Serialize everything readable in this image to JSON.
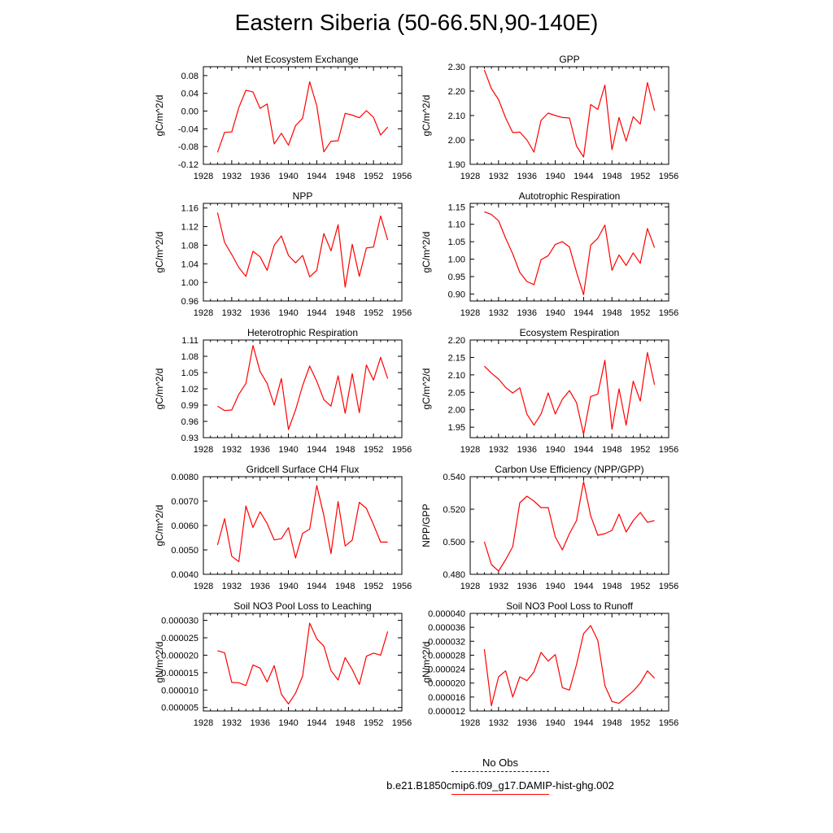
{
  "title": "Eastern Siberia (50-66.5N,90-140E)",
  "colors": {
    "model": "#ff0000",
    "obs": "#0000ff",
    "axis": "#000000"
  },
  "legend": {
    "obs_label": "No Obs",
    "model_label": "b.e21.B1850cmip6.f09_g17.DAMIP-hist-ghg.002"
  },
  "chart_data": [
    {
      "type": "line",
      "title": "Net Ecosystem Exchange",
      "ylabel": "gC/m^2/d",
      "xlim": [
        1928,
        1956
      ],
      "xticks": [
        1928,
        1932,
        1936,
        1940,
        1944,
        1948,
        1952,
        1956
      ],
      "ylim": [
        -0.12,
        0.1
      ],
      "yticks": [
        "-0.12",
        "-0.08",
        "-0.04",
        "0.00",
        "0.04",
        "0.08"
      ],
      "series": [
        {
          "x": [
            1930,
            1931,
            1932,
            1933,
            1934,
            1935,
            1936,
            1937,
            1938,
            1939,
            1940,
            1941,
            1942,
            1943,
            1944,
            1945,
            1946,
            1947,
            1948,
            1949,
            1950,
            1951,
            1952,
            1953,
            1954
          ],
          "values": [
            -0.093,
            -0.048,
            -0.047,
            0.008,
            0.047,
            0.043,
            0.006,
            0.016,
            -0.074,
            -0.05,
            -0.077,
            -0.033,
            -0.016,
            0.066,
            0.012,
            -0.092,
            -0.068,
            -0.067,
            -0.005,
            -0.009,
            -0.015,
            0.001,
            -0.014,
            -0.054,
            -0.036
          ]
        }
      ]
    },
    {
      "type": "line",
      "title": "GPP",
      "ylabel": "gC/m^2/d",
      "xlim": [
        1928,
        1956
      ],
      "xticks": [
        1928,
        1932,
        1936,
        1940,
        1944,
        1948,
        1952,
        1956
      ],
      "ylim": [
        1.9,
        2.3
      ],
      "yticks": [
        "1.90",
        "2.00",
        "2.10",
        "2.20",
        "2.30"
      ],
      "series": [
        {
          "x": [
            1930,
            1931,
            1932,
            1933,
            1934,
            1935,
            1936,
            1937,
            1938,
            1939,
            1940,
            1941,
            1942,
            1943,
            1944,
            1945,
            1946,
            1947,
            1948,
            1949,
            1950,
            1951,
            1952,
            1953,
            1954
          ],
          "values": [
            2.287,
            2.21,
            2.165,
            2.09,
            2.03,
            2.032,
            2.0,
            1.95,
            2.08,
            2.11,
            2.1,
            2.092,
            2.09,
            1.975,
            1.93,
            2.145,
            2.125,
            2.225,
            1.96,
            2.092,
            1.995,
            2.095,
            2.065,
            2.235,
            2.12
          ]
        }
      ]
    },
    {
      "type": "line",
      "title": "NPP",
      "ylabel": "gC/m^2/d",
      "xlim": [
        1928,
        1956
      ],
      "xticks": [
        1928,
        1932,
        1936,
        1940,
        1944,
        1948,
        1952,
        1956
      ],
      "ylim": [
        0.96,
        1.17
      ],
      "yticks": [
        "0.96",
        "1.00",
        "1.04",
        "1.08",
        "1.12",
        "1.16"
      ],
      "series": [
        {
          "x": [
            1930,
            1931,
            1932,
            1933,
            1934,
            1935,
            1936,
            1937,
            1938,
            1939,
            1940,
            1941,
            1942,
            1943,
            1944,
            1945,
            1946,
            1947,
            1948,
            1949,
            1950,
            1951,
            1952,
            1953,
            1954
          ],
          "values": [
            1.15,
            1.086,
            1.06,
            1.032,
            1.013,
            1.067,
            1.055,
            1.026,
            1.08,
            1.1,
            1.058,
            1.042,
            1.058,
            1.012,
            1.026,
            1.105,
            1.068,
            1.124,
            0.99,
            1.082,
            1.013,
            1.074,
            1.076,
            1.143,
            1.091
          ]
        }
      ]
    },
    {
      "type": "line",
      "title": "Autotrophic Respiration",
      "ylabel": "gC/m^2/d",
      "xlim": [
        1928,
        1956
      ],
      "xticks": [
        1928,
        1932,
        1936,
        1940,
        1944,
        1948,
        1952,
        1956
      ],
      "ylim": [
        0.88,
        1.16
      ],
      "yticks": [
        "0.90",
        "0.95",
        "1.00",
        "1.05",
        "1.10",
        "1.15"
      ],
      "series": [
        {
          "x": [
            1930,
            1931,
            1932,
            1933,
            1934,
            1935,
            1936,
            1937,
            1938,
            1939,
            1940,
            1941,
            1942,
            1943,
            1944,
            1945,
            1946,
            1947,
            1948,
            1949,
            1950,
            1951,
            1952,
            1953,
            1954
          ],
          "values": [
            1.136,
            1.128,
            1.11,
            1.06,
            1.015,
            0.962,
            0.936,
            0.927,
            0.998,
            1.01,
            1.042,
            1.05,
            1.035,
            0.963,
            0.898,
            1.04,
            1.06,
            1.098,
            0.968,
            1.012,
            0.982,
            1.018,
            0.988,
            1.088,
            1.033
          ]
        }
      ]
    },
    {
      "type": "line",
      "title": "Heterotrophic Respiration",
      "ylabel": "gC/m^2/d",
      "xlim": [
        1928,
        1956
      ],
      "xticks": [
        1928,
        1932,
        1936,
        1940,
        1944,
        1948,
        1952,
        1956
      ],
      "ylim": [
        0.93,
        1.11
      ],
      "yticks": [
        "0.93",
        "0.96",
        "0.99",
        "1.02",
        "1.05",
        "1.08",
        "1.11"
      ],
      "series": [
        {
          "x": [
            1930,
            1931,
            1932,
            1933,
            1934,
            1935,
            1936,
            1937,
            1938,
            1939,
            1940,
            1941,
            1942,
            1943,
            1944,
            1945,
            1946,
            1947,
            1948,
            1949,
            1950,
            1951,
            1952,
            1953,
            1954
          ],
          "values": [
            0.988,
            0.98,
            0.981,
            1.01,
            1.03,
            1.1,
            1.052,
            1.03,
            0.99,
            1.039,
            0.945,
            0.981,
            1.026,
            1.062,
            1.034,
            1.0,
            0.988,
            1.044,
            0.975,
            1.048,
            0.976,
            1.064,
            1.036,
            1.078,
            1.039
          ]
        }
      ]
    },
    {
      "type": "line",
      "title": "Ecosystem Respiration",
      "ylabel": "gC/m^2/d",
      "xlim": [
        1928,
        1956
      ],
      "xticks": [
        1928,
        1932,
        1936,
        1940,
        1944,
        1948,
        1952,
        1956
      ],
      "ylim": [
        1.92,
        2.2
      ],
      "yticks": [
        "1.95",
        "2.00",
        "2.05",
        "2.10",
        "2.15",
        "2.20"
      ],
      "series": [
        {
          "x": [
            1930,
            1931,
            1932,
            1933,
            1934,
            1935,
            1936,
            1937,
            1938,
            1939,
            1940,
            1941,
            1942,
            1943,
            1944,
            1945,
            1946,
            1947,
            1948,
            1949,
            1950,
            1951,
            1952,
            1953,
            1954
          ],
          "values": [
            2.125,
            2.105,
            2.088,
            2.064,
            2.048,
            2.063,
            1.988,
            1.956,
            1.988,
            2.048,
            1.988,
            2.03,
            2.055,
            2.02,
            1.93,
            2.038,
            2.045,
            2.142,
            1.944,
            2.06,
            1.956,
            2.082,
            2.025,
            2.164,
            2.072
          ]
        }
      ]
    },
    {
      "type": "line",
      "title": "Gridcell Surface CH4 Flux",
      "ylabel": "gC/m^2/d",
      "xlim": [
        1928,
        1956
      ],
      "xticks": [
        1928,
        1932,
        1936,
        1940,
        1944,
        1948,
        1952,
        1956
      ],
      "ylim": [
        0.004,
        0.008
      ],
      "yticks": [
        "0.0040",
        "0.0050",
        "0.0060",
        "0.0070",
        "0.0080"
      ],
      "series": [
        {
          "x": [
            1930,
            1931,
            1932,
            1933,
            1934,
            1935,
            1936,
            1937,
            1938,
            1939,
            1940,
            1941,
            1942,
            1943,
            1944,
            1945,
            1946,
            1947,
            1948,
            1949,
            1950,
            1951,
            1952,
            1953,
            1954
          ],
          "values": [
            0.0052,
            0.00628,
            0.00474,
            0.00452,
            0.0068,
            0.00592,
            0.00656,
            0.00608,
            0.00541,
            0.00546,
            0.00591,
            0.00467,
            0.00568,
            0.00585,
            0.00764,
            0.00641,
            0.00485,
            0.00698,
            0.00516,
            0.0054,
            0.00695,
            0.0067,
            0.00604,
            0.00532,
            0.00532
          ]
        }
      ]
    },
    {
      "type": "line",
      "title": "Carbon Use Efficiency (NPP/GPP)",
      "ylabel": "NPP/GPP",
      "xlim": [
        1928,
        1956
      ],
      "xticks": [
        1928,
        1932,
        1936,
        1940,
        1944,
        1948,
        1952,
        1956
      ],
      "ylim": [
        0.48,
        0.54
      ],
      "yticks": [
        "0.480",
        "0.500",
        "0.520",
        "0.540"
      ],
      "series": [
        {
          "x": [
            1930,
            1931,
            1932,
            1933,
            1934,
            1935,
            1936,
            1937,
            1938,
            1939,
            1940,
            1941,
            1942,
            1943,
            1944,
            1945,
            1946,
            1947,
            1948,
            1949,
            1950,
            1951,
            1952,
            1953,
            1954
          ],
          "values": [
            0.5,
            0.486,
            0.482,
            0.489,
            0.497,
            0.524,
            0.528,
            0.525,
            0.521,
            0.521,
            0.503,
            0.495,
            0.505,
            0.513,
            0.537,
            0.516,
            0.504,
            0.505,
            0.507,
            0.517,
            0.506,
            0.513,
            0.518,
            0.512,
            0.513
          ]
        }
      ]
    },
    {
      "type": "line",
      "title": "Soil NO3 Pool Loss to Leaching",
      "ylabel": "gN/m^2/d",
      "xlim": [
        1928,
        1956
      ],
      "xticks": [
        1928,
        1932,
        1936,
        1940,
        1944,
        1948,
        1952,
        1956
      ],
      "ylim": [
        4e-06,
        3.2e-05
      ],
      "yticks": [
        "0.000005",
        "0.000010",
        "0.000015",
        "0.000020",
        "0.000025",
        "0.000030"
      ],
      "series": [
        {
          "x": [
            1930,
            1931,
            1932,
            1933,
            1934,
            1935,
            1936,
            1937,
            1938,
            1939,
            1940,
            1941,
            1942,
            1943,
            1944,
            1945,
            1946,
            1947,
            1948,
            1949,
            1950,
            1951,
            1952,
            1953,
            1954
          ],
          "values": [
            2.13e-05,
            2.07e-05,
            1.22e-05,
            1.21e-05,
            1.13e-05,
            1.72e-05,
            1.63e-05,
            1.23e-05,
            1.7e-05,
            8.8e-06,
            6e-06,
            9.1e-06,
            1.4e-05,
            2.92e-05,
            2.47e-05,
            2.26e-05,
            1.56e-05,
            1.29e-05,
            1.93e-05,
            1.59e-05,
            1.16e-05,
            1.97e-05,
            2.06e-05,
            2e-05,
            2.68e-05
          ]
        }
      ]
    },
    {
      "type": "line",
      "title": "Soil NO3 Pool Loss to Runoff",
      "ylabel": "gN/m^2/d",
      "xlim": [
        1928,
        1956
      ],
      "xticks": [
        1928,
        1932,
        1936,
        1940,
        1944,
        1948,
        1952,
        1956
      ],
      "ylim": [
        1.2e-05,
        4e-05
      ],
      "yticks": [
        "0.000012",
        "0.000016",
        "0.000020",
        "0.000024",
        "0.000028",
        "0.000032",
        "0.000036",
        "0.000040"
      ],
      "series": [
        {
          "x": [
            1930,
            1931,
            1932,
            1933,
            1934,
            1935,
            1936,
            1937,
            1938,
            1939,
            1940,
            1941,
            1942,
            1943,
            1944,
            1945,
            1946,
            1947,
            1948,
            1949,
            1950,
            1951,
            1952,
            1953,
            1954
          ],
          "values": [
            2.97e-05,
            1.35e-05,
            2.18e-05,
            2.35e-05,
            1.6e-05,
            2.18e-05,
            2.07e-05,
            2.32e-05,
            2.88e-05,
            2.63e-05,
            2.82e-05,
            1.87e-05,
            1.8e-05,
            2.53e-05,
            3.42e-05,
            3.65e-05,
            3.22e-05,
            1.93e-05,
            1.47e-05,
            1.42e-05,
            1.6e-05,
            1.77e-05,
            2e-05,
            2.35e-05,
            2.14e-05
          ]
        }
      ]
    }
  ]
}
